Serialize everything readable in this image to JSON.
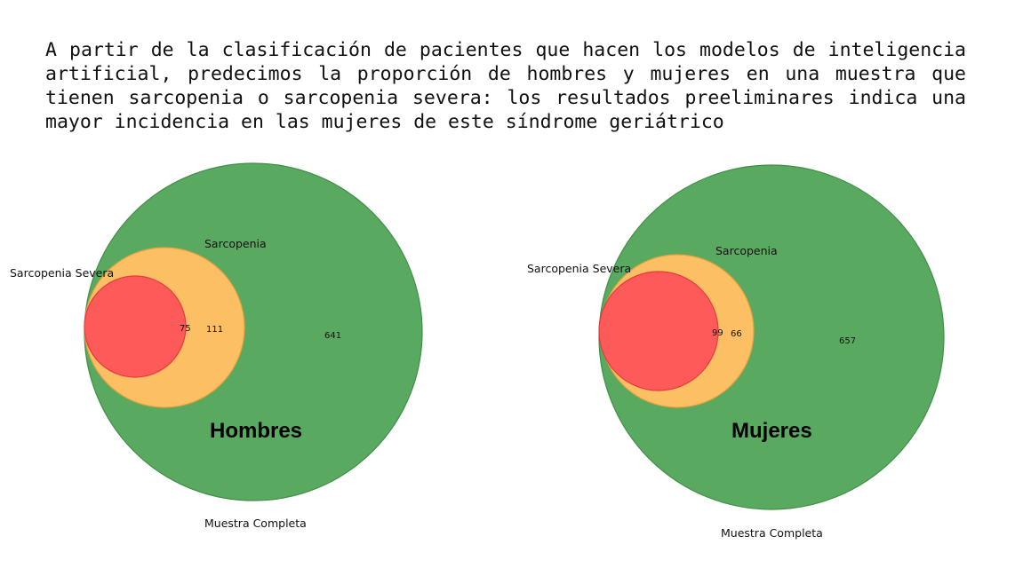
{
  "slide": {
    "intro_text": "A partir de la clasificación de pacientes que hacen los modelos de inteligencia artificial, predecimos la proporción de hombres y mujeres en una muestra que tienen sarcopenia o sarcopenia severa: los resultados preeliminares indica una mayor incidencia en las mujeres de este síndrome geriátrico"
  },
  "colors": {
    "muestra": "#5aa960",
    "muestra_stroke": "#3f8f46",
    "sarcopenia": "#fcbf64",
    "sarcopenia_stroke": "#eaa23e",
    "severa": "#fd5a59",
    "severa_stroke": "#e63b3b"
  },
  "venn": [
    {
      "title": "Hombres",
      "set_labels": {
        "muestra": "Muestra Completa",
        "sarcopenia": "Sarcopenia",
        "severa": "Sarcopenia Severa"
      },
      "counts": {
        "severa": "75",
        "sarcopenia_only": "111",
        "muestra_only": "641"
      }
    },
    {
      "title": "Mujeres",
      "set_labels": {
        "muestra": "Muestra Completa",
        "sarcopenia": "Sarcopenia",
        "severa": "Sarcopenia Severa"
      },
      "counts": {
        "severa": "99",
        "sarcopenia_only": "66",
        "muestra_only": "657"
      }
    }
  ]
}
